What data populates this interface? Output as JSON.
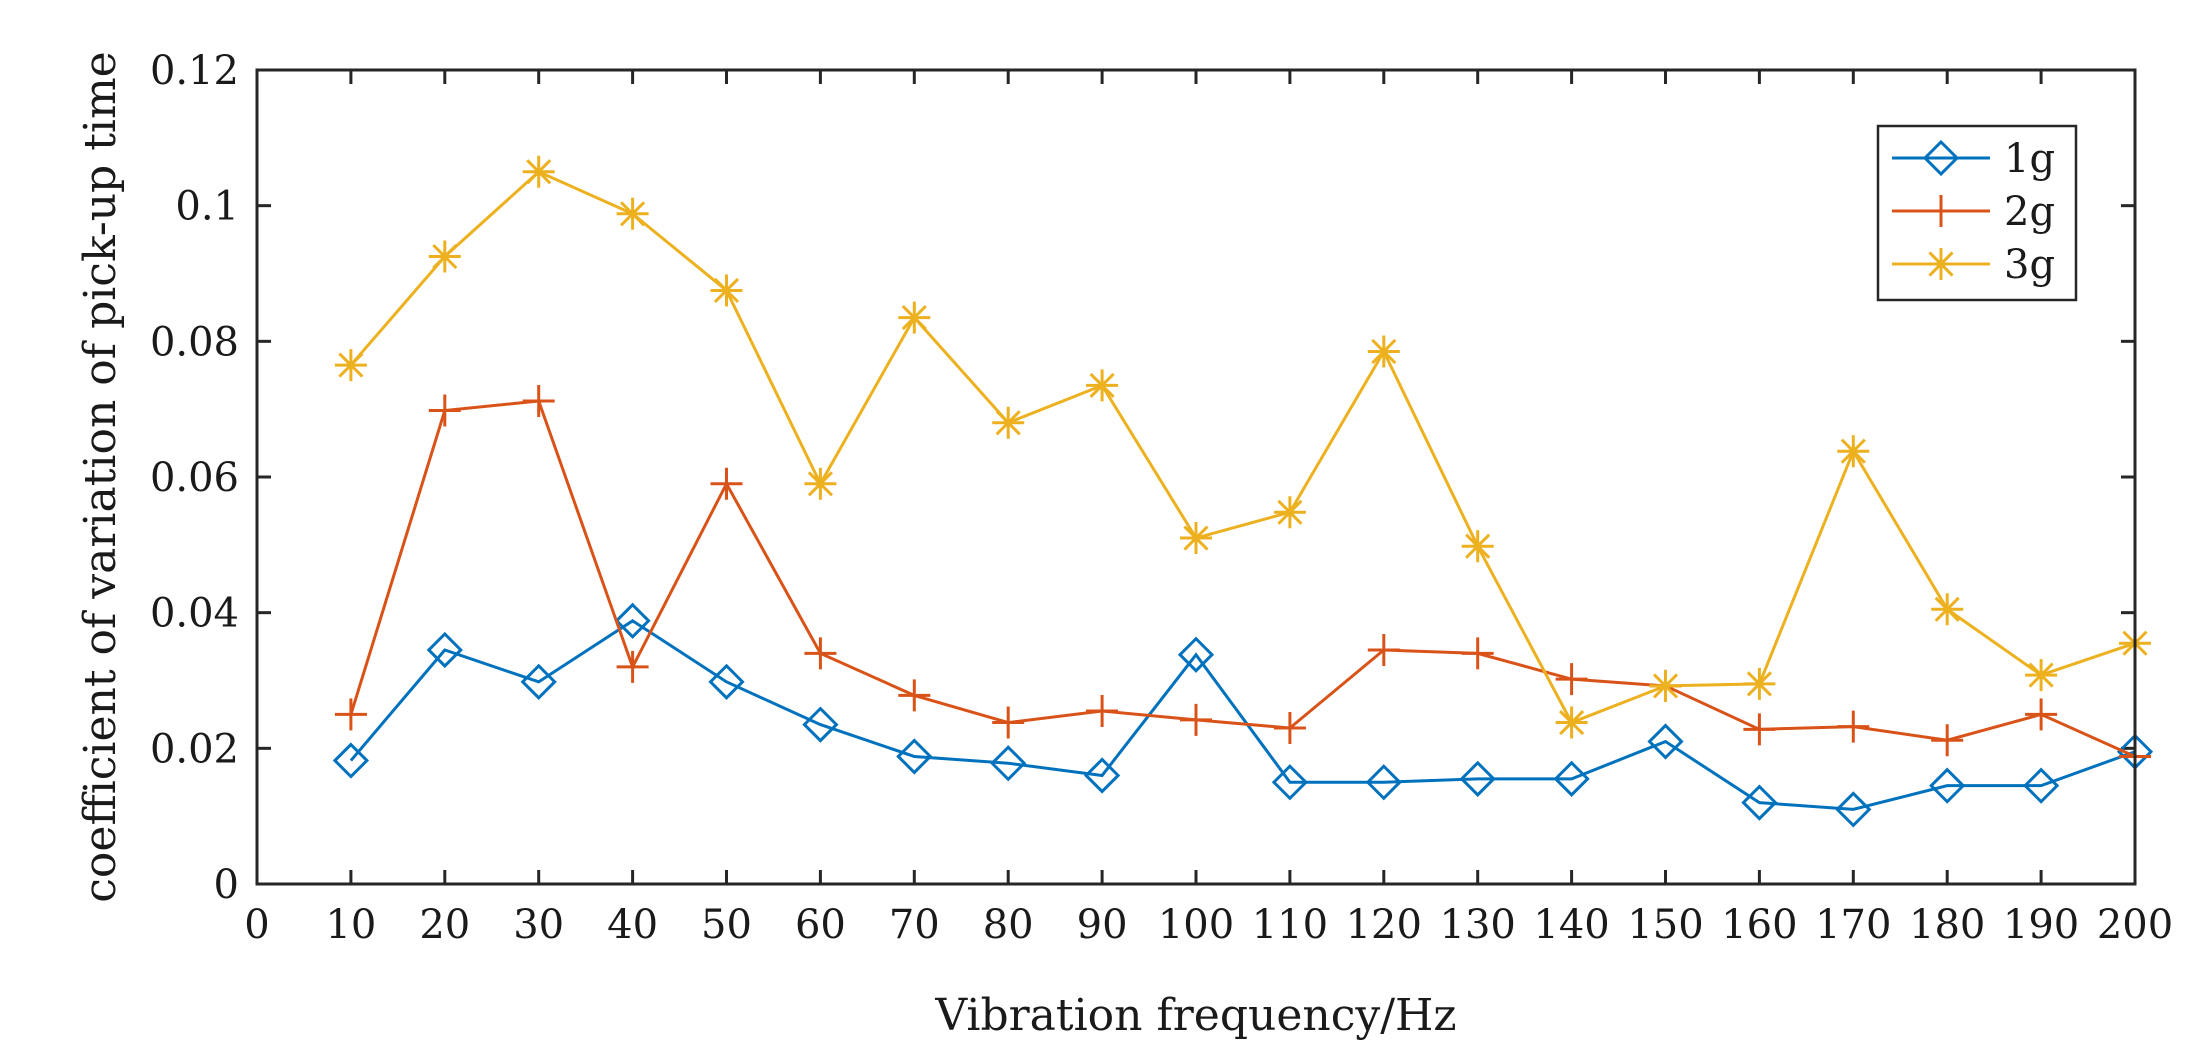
{
  "chart_data": {
    "type": "line",
    "title": "",
    "xlabel": "Vibration frequency/Hz",
    "ylabel": "coefficient of variation of pick-up time",
    "xlim": [
      0,
      200
    ],
    "ylim": [
      0,
      0.12
    ],
    "x_ticks": [
      "0",
      "10",
      "20",
      "30",
      "40",
      "50",
      "60",
      "70",
      "80",
      "90",
      "100",
      "110",
      "120",
      "130",
      "140",
      "150",
      "160",
      "170",
      "180",
      "190",
      "200"
    ],
    "y_ticks": [
      "0",
      "0.02",
      "0.04",
      "0.06",
      "0.08",
      "0.1",
      "0.12"
    ],
    "legend_position": "top-right",
    "grid": false,
    "x": [
      10,
      20,
      30,
      40,
      50,
      60,
      70,
      80,
      90,
      100,
      110,
      120,
      130,
      140,
      150,
      160,
      170,
      180,
      190,
      200
    ],
    "series": [
      {
        "name": "1g",
        "color": "#0072BD",
        "marker": "diamond",
        "values": [
          0.0182,
          0.0345,
          0.0298,
          0.0388,
          0.0298,
          0.0235,
          0.0188,
          0.0178,
          0.016,
          0.0338,
          0.015,
          0.015,
          0.0155,
          0.0155,
          0.021,
          0.012,
          0.011,
          0.0145,
          0.0145,
          0.0195
        ]
      },
      {
        "name": "2g",
        "color": "#D95319",
        "marker": "plus",
        "values": [
          0.025,
          0.0698,
          0.0712,
          0.032,
          0.059,
          0.034,
          0.0278,
          0.0238,
          0.0255,
          0.0242,
          0.023,
          0.0345,
          0.034,
          0.0302,
          0.0292,
          0.0228,
          0.0232,
          0.0212,
          0.025,
          0.0188
        ]
      },
      {
        "name": "3g",
        "color": "#EDB120",
        "marker": "asterisk",
        "values": [
          0.0765,
          0.0925,
          0.105,
          0.0988,
          0.0875,
          0.059,
          0.0835,
          0.068,
          0.0735,
          0.051,
          0.0548,
          0.0785,
          0.0498,
          0.0238,
          0.0292,
          0.0295,
          0.0638,
          0.0405,
          0.0308,
          0.0355
        ]
      }
    ]
  }
}
